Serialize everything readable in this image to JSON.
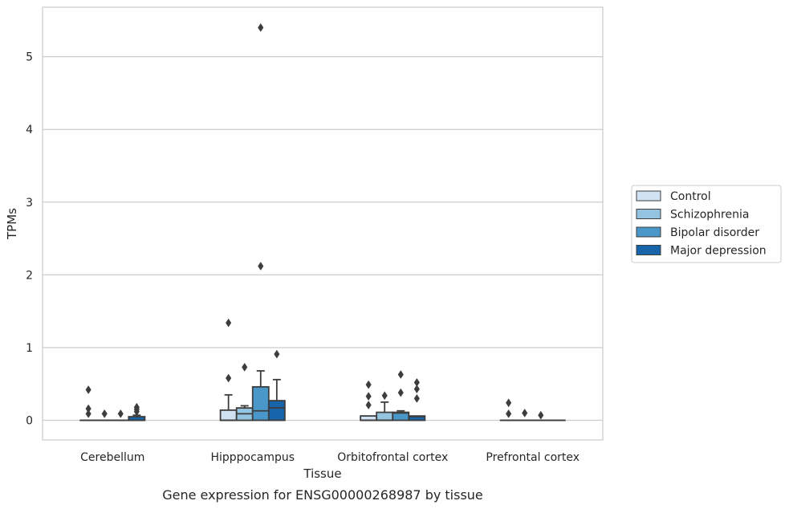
{
  "chart_data": {
    "type": "box",
    "caption": "Gene expression for ENSG00000268987 by tissue",
    "xlabel": "Tissue",
    "ylabel": "TPMs",
    "ylim": [
      -0.27,
      5.68
    ],
    "yticks": [
      0,
      1,
      2,
      3,
      4,
      5
    ],
    "grid": "horizontal",
    "legend_position": "right",
    "categories": [
      "Cerebellum",
      "Hipppocampus",
      "Orbitofrontal cortex",
      "Prefrontal cortex"
    ],
    "series": [
      {
        "name": "Control",
        "color": "#d0e1f2",
        "boxes": [
          {
            "q1": 0,
            "median": 0,
            "q3": 0,
            "whisker_low": 0,
            "whisker_high": 0,
            "outliers": [
              0.42,
              0.16,
              0.09
            ]
          },
          {
            "q1": 0,
            "median": 0,
            "q3": 0.14,
            "whisker_low": 0,
            "whisker_high": 0.35,
            "outliers": [
              1.34,
              0.58
            ]
          },
          {
            "q1": 0,
            "median": 0,
            "q3": 0.06,
            "whisker_low": 0,
            "whisker_high": 0.06,
            "outliers": [
              0.49,
              0.33,
              0.21
            ]
          },
          {
            "q1": 0,
            "median": 0,
            "q3": 0,
            "whisker_low": 0,
            "whisker_high": 0,
            "outliers": [
              0.24,
              0.09
            ]
          }
        ]
      },
      {
        "name": "Schizophrenia",
        "color": "#94c4df",
        "boxes": [
          {
            "q1": 0,
            "median": 0,
            "q3": 0,
            "whisker_low": 0,
            "whisker_high": 0,
            "outliers": [
              0.09
            ]
          },
          {
            "q1": 0,
            "median": 0.09,
            "q3": 0.17,
            "whisker_low": 0,
            "whisker_high": 0.2,
            "outliers": [
              0.73
            ]
          },
          {
            "q1": 0,
            "median": 0,
            "q3": 0.11,
            "whisker_low": 0,
            "whisker_high": 0.25,
            "outliers": [
              0.34
            ]
          },
          {
            "q1": 0,
            "median": 0,
            "q3": 0,
            "whisker_low": 0,
            "whisker_high": 0,
            "outliers": [
              0.1
            ]
          }
        ]
      },
      {
        "name": "Bipolar disorder",
        "color": "#4a98c9",
        "boxes": [
          {
            "q1": 0,
            "median": 0,
            "q3": 0,
            "whisker_low": 0,
            "whisker_high": 0,
            "outliers": [
              0.09
            ]
          },
          {
            "q1": 0,
            "median": 0.13,
            "q3": 0.46,
            "whisker_low": 0,
            "whisker_high": 0.68,
            "outliers": [
              5.4,
              2.12
            ]
          },
          {
            "q1": 0,
            "median": 0.1,
            "q3": 0.11,
            "whisker_low": 0,
            "whisker_high": 0.13,
            "outliers": [
              0.63,
              0.38
            ]
          },
          {
            "q1": 0,
            "median": 0,
            "q3": 0,
            "whisker_low": 0,
            "whisker_high": 0,
            "outliers": [
              0.07
            ]
          }
        ]
      },
      {
        "name": "Major depression",
        "color": "#1764ab",
        "boxes": [
          {
            "q1": 0,
            "median": 0,
            "q3": 0.05,
            "whisker_low": 0,
            "whisker_high": 0.07,
            "outliers": [
              0.18,
              0.15,
              0.12
            ]
          },
          {
            "q1": 0,
            "median": 0.17,
            "q3": 0.27,
            "whisker_low": 0,
            "whisker_high": 0.56,
            "outliers": [
              0.91
            ]
          },
          {
            "q1": 0,
            "median": 0.05,
            "q3": 0.06,
            "whisker_low": 0,
            "whisker_high": 0.06,
            "outliers": [
              0.52,
              0.43,
              0.3
            ]
          },
          {
            "q1": 0,
            "median": 0,
            "q3": 0,
            "whisker_low": 0,
            "whisker_high": 0,
            "outliers": []
          }
        ]
      }
    ]
  }
}
